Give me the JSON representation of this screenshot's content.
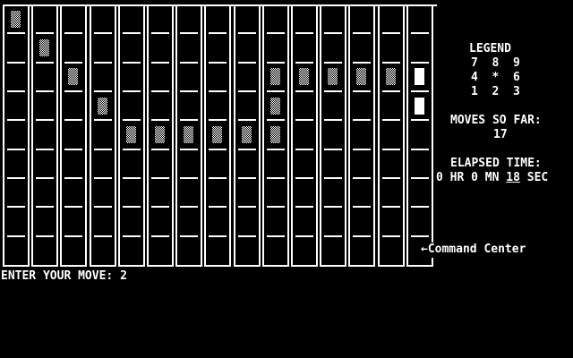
{
  "screen": {
    "background": "#000000",
    "foreground": "#ffffff"
  },
  "board": {
    "columns": 15,
    "rows": 9,
    "blocks": [
      {
        "col": 1,
        "row": 1,
        "type": "dither"
      },
      {
        "col": 2,
        "row": 2,
        "type": "dither"
      },
      {
        "col": 3,
        "row": 3,
        "type": "dither"
      },
      {
        "col": 4,
        "row": 4,
        "type": "dither"
      },
      {
        "col": 5,
        "row": 5,
        "type": "dither"
      },
      {
        "col": 6,
        "row": 5,
        "type": "dither"
      },
      {
        "col": 7,
        "row": 5,
        "type": "dither"
      },
      {
        "col": 8,
        "row": 5,
        "type": "dither"
      },
      {
        "col": 9,
        "row": 5,
        "type": "dither"
      },
      {
        "col": 10,
        "row": 3,
        "type": "dither"
      },
      {
        "col": 10,
        "row": 4,
        "type": "dither"
      },
      {
        "col": 10,
        "row": 5,
        "type": "dither"
      },
      {
        "col": 11,
        "row": 3,
        "type": "dither"
      },
      {
        "col": 12,
        "row": 3,
        "type": "dither"
      },
      {
        "col": 13,
        "row": 3,
        "type": "dither"
      },
      {
        "col": 14,
        "row": 3,
        "type": "dither"
      },
      {
        "col": 15,
        "row": 3,
        "type": "solid"
      },
      {
        "col": 15,
        "row": 4,
        "type": "solid"
      }
    ],
    "command_center_label": "←Command Center"
  },
  "legend": {
    "title": "LEGEND",
    "rows": [
      "7  8  9",
      "4  *  6",
      "1  2  3"
    ]
  },
  "status": {
    "moves_label": "MOVES SO FAR:",
    "moves_value": "17",
    "elapsed_label": "ELAPSED TIME:",
    "elapsed_prefix": "0 HR 0 MN ",
    "elapsed_seconds": "18",
    "elapsed_suffix": " SEC"
  },
  "prompt": {
    "label": "ENTER YOUR MOVE: ",
    "value": "2"
  }
}
